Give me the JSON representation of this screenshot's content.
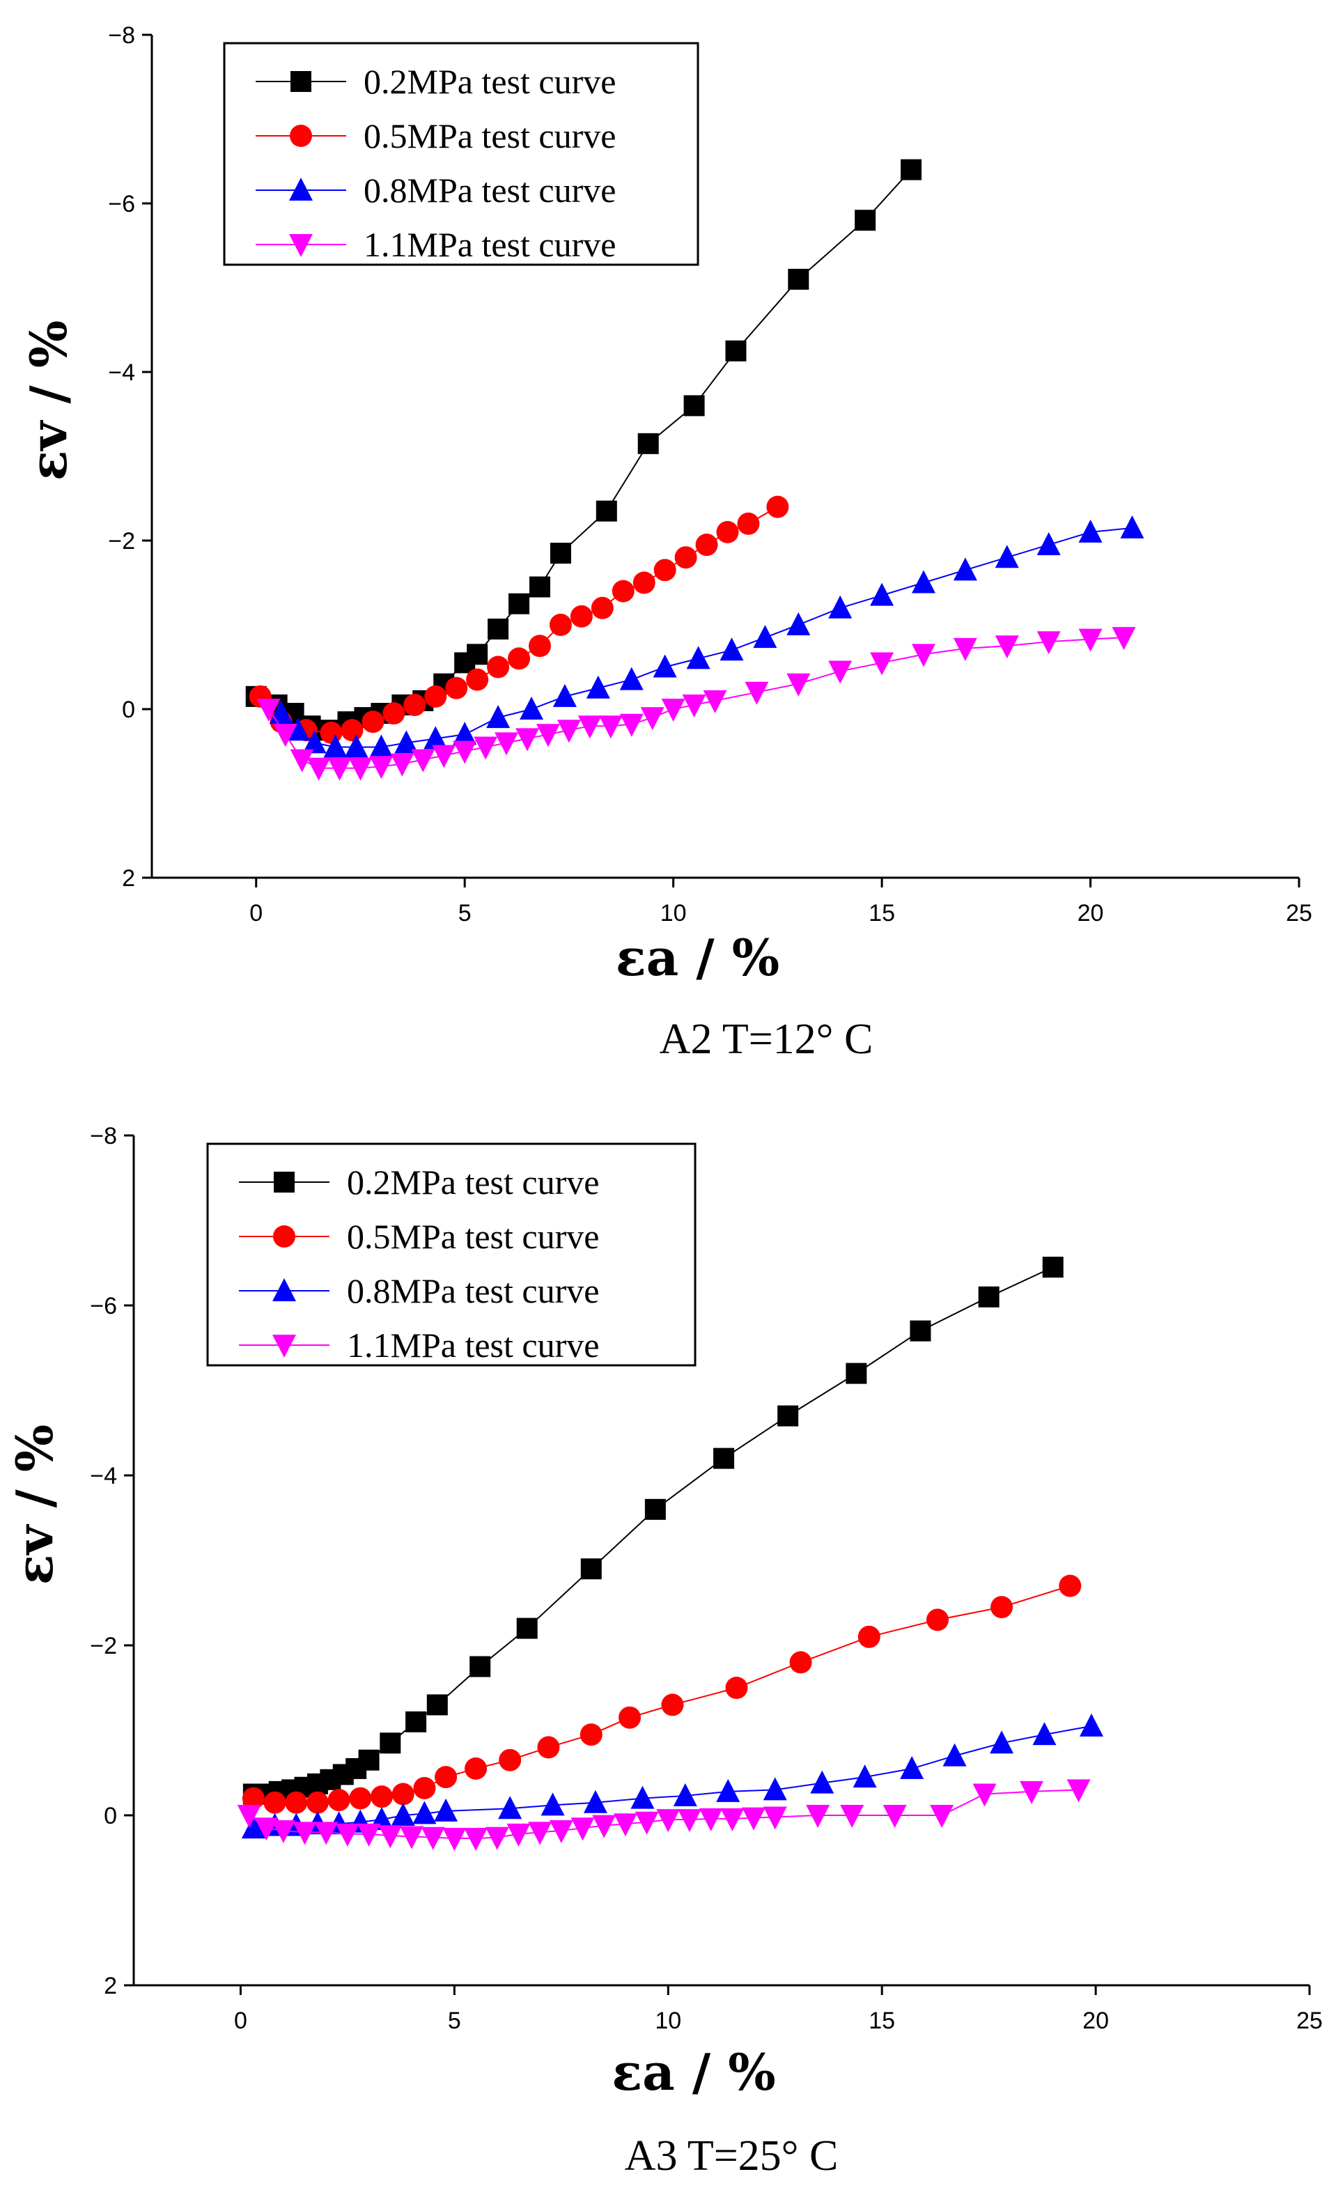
{
  "chart_data": [
    {
      "type": "line",
      "caption": "A2 T=12° C",
      "xlabel": "εa / %",
      "ylabel": "εv / %",
      "xlim": [
        -2.5,
        25
      ],
      "ylim": [
        2,
        -8
      ],
      "x_ticks": [
        0,
        5,
        10,
        15,
        20,
        25
      ],
      "y_ticks": [
        2,
        0,
        -2,
        -4,
        -6,
        -8
      ],
      "legend_position": "top-left",
      "series": [
        {
          "name": "0.2MPa test curve",
          "color": "#000000",
          "marker": "square",
          "x": [
            0.0,
            0.5,
            0.9,
            1.3,
            1.7,
            2.2,
            2.6,
            3.0,
            3.5,
            4.0,
            4.5,
            5.0,
            5.3,
            5.8,
            6.3,
            6.8,
            7.3,
            8.4,
            9.4,
            10.5,
            11.5,
            13.0,
            14.6,
            15.7
          ],
          "y": [
            -0.15,
            -0.05,
            0.05,
            0.2,
            0.25,
            0.15,
            0.1,
            0.05,
            -0.05,
            -0.1,
            -0.3,
            -0.55,
            -0.65,
            -0.95,
            -1.25,
            -1.45,
            -1.85,
            -2.35,
            -3.15,
            -3.6,
            -4.25,
            -5.1,
            -5.8,
            -6.4
          ]
        },
        {
          "name": "0.5MPa test curve",
          "color": "#ff0000",
          "marker": "circle",
          "x": [
            0.1,
            0.6,
            1.2,
            1.8,
            2.3,
            2.8,
            3.3,
            3.8,
            4.3,
            4.8,
            5.3,
            5.8,
            6.3,
            6.8,
            7.3,
            7.8,
            8.3,
            8.8,
            9.3,
            9.8,
            10.3,
            10.8,
            11.3,
            11.8,
            12.5
          ],
          "y": [
            -0.15,
            0.15,
            0.25,
            0.28,
            0.25,
            0.15,
            0.05,
            -0.05,
            -0.15,
            -0.25,
            -0.35,
            -0.5,
            -0.6,
            -0.75,
            -1.0,
            -1.1,
            -1.2,
            -1.4,
            -1.5,
            -1.65,
            -1.8,
            -1.95,
            -2.1,
            -2.2,
            -2.4
          ]
        },
        {
          "name": "0.8MPa test curve",
          "color": "#0000ff",
          "marker": "triangle-up",
          "x": [
            0.6,
            1.0,
            1.4,
            1.9,
            2.4,
            3.0,
            3.6,
            4.3,
            5.0,
            5.8,
            6.6,
            7.4,
            8.2,
            9.0,
            9.8,
            10.6,
            11.4,
            12.2,
            13.0,
            14.0,
            15.0,
            16.0,
            17.0,
            18.0,
            19.0,
            20.0,
            21.0
          ],
          "y": [
            0.05,
            0.25,
            0.4,
            0.45,
            0.45,
            0.45,
            0.4,
            0.35,
            0.3,
            0.1,
            0.0,
            -0.15,
            -0.25,
            -0.35,
            -0.5,
            -0.6,
            -0.7,
            -0.85,
            -1.0,
            -1.2,
            -1.35,
            -1.5,
            -1.65,
            -1.8,
            -1.95,
            -2.1,
            -2.15
          ]
        },
        {
          "name": "1.1MPa test curve",
          "color": "#ff00ff",
          "marker": "triangle-down",
          "x": [
            0.3,
            0.7,
            1.1,
            1.5,
            2.0,
            2.5,
            3.0,
            3.5,
            4.0,
            4.5,
            5.0,
            5.5,
            6.0,
            6.5,
            7.0,
            7.5,
            8.0,
            8.5,
            9.0,
            9.5,
            10.0,
            10.5,
            11.0,
            12.0,
            13.0,
            14.0,
            15.0,
            16.0,
            17.0,
            18.0,
            19.0,
            20.0,
            20.8
          ],
          "y": [
            0.0,
            0.3,
            0.6,
            0.7,
            0.7,
            0.7,
            0.68,
            0.65,
            0.6,
            0.55,
            0.5,
            0.45,
            0.4,
            0.35,
            0.3,
            0.25,
            0.2,
            0.2,
            0.18,
            0.1,
            0.0,
            -0.05,
            -0.1,
            -0.2,
            -0.3,
            -0.45,
            -0.55,
            -0.65,
            -0.72,
            -0.75,
            -0.8,
            -0.83,
            -0.85
          ]
        }
      ]
    },
    {
      "type": "line",
      "caption": "A3  T=25° C",
      "xlabel": "εa / %",
      "ylabel": "εv / %",
      "xlim": [
        -2.5,
        25
      ],
      "ylim": [
        2,
        -8
      ],
      "x_ticks": [
        0,
        5,
        10,
        15,
        20,
        25
      ],
      "y_ticks": [
        2,
        0,
        -2,
        -4,
        -6,
        -8
      ],
      "legend_position": "top-left",
      "series": [
        {
          "name": "0.2MPa test curve",
          "color": "#000000",
          "marker": "square",
          "x": [
            0.3,
            0.6,
            0.9,
            1.2,
            1.5,
            1.8,
            2.1,
            2.4,
            2.7,
            3.0,
            3.5,
            4.1,
            4.6,
            5.6,
            6.7,
            8.2,
            9.7,
            11.3,
            12.8,
            14.4,
            15.9,
            17.5,
            19.0
          ],
          "y": [
            -0.25,
            -0.25,
            -0.28,
            -0.3,
            -0.33,
            -0.37,
            -0.42,
            -0.48,
            -0.55,
            -0.65,
            -0.85,
            -1.1,
            -1.3,
            -1.75,
            -2.2,
            -2.9,
            -3.6,
            -4.2,
            -4.7,
            -5.2,
            -5.7,
            -6.1,
            -6.45
          ]
        },
        {
          "name": "0.5MPa test curve",
          "color": "#ff0000",
          "marker": "circle",
          "x": [
            0.3,
            0.8,
            1.3,
            1.8,
            2.3,
            2.8,
            3.3,
            3.8,
            4.3,
            4.8,
            5.5,
            6.3,
            7.2,
            8.2,
            9.1,
            10.1,
            11.6,
            13.1,
            14.7,
            16.3,
            17.8,
            19.4
          ],
          "y": [
            -0.2,
            -0.15,
            -0.15,
            -0.15,
            -0.18,
            -0.2,
            -0.22,
            -0.25,
            -0.32,
            -0.45,
            -0.55,
            -0.65,
            -0.8,
            -0.95,
            -1.15,
            -1.3,
            -1.5,
            -1.8,
            -2.1,
            -2.3,
            -2.45,
            -2.7
          ]
        },
        {
          "name": "0.8MPa test curve",
          "color": "#0000ff",
          "marker": "triangle-up",
          "x": [
            0.3,
            0.8,
            1.3,
            1.8,
            2.3,
            2.8,
            3.3,
            3.8,
            4.3,
            4.8,
            6.3,
            7.3,
            8.3,
            9.4,
            10.4,
            11.4,
            12.5,
            13.6,
            14.6,
            15.7,
            16.7,
            17.8,
            18.8,
            19.9
          ],
          "y": [
            0.15,
            0.12,
            0.12,
            0.1,
            0.1,
            0.08,
            0.05,
            0.0,
            -0.02,
            -0.05,
            -0.08,
            -0.12,
            -0.15,
            -0.2,
            -0.23,
            -0.28,
            -0.3,
            -0.38,
            -0.45,
            -0.55,
            -0.7,
            -0.85,
            -0.95,
            -1.05
          ]
        },
        {
          "name": "1.1MPa test curve",
          "color": "#ff00ff",
          "marker": "triangle-down",
          "x": [
            0.2,
            0.6,
            1.0,
            1.5,
            2.0,
            2.5,
            3.0,
            3.5,
            4.0,
            4.5,
            5.0,
            5.5,
            6.0,
            6.5,
            7.0,
            7.5,
            8.0,
            8.5,
            9.0,
            9.5,
            10.0,
            10.5,
            11.0,
            11.5,
            12.0,
            12.5,
            13.5,
            14.3,
            15.3,
            16.4,
            17.4,
            18.5,
            19.6
          ],
          "y": [
            0.0,
            0.15,
            0.18,
            0.2,
            0.2,
            0.22,
            0.22,
            0.24,
            0.25,
            0.26,
            0.27,
            0.27,
            0.26,
            0.22,
            0.2,
            0.18,
            0.15,
            0.12,
            0.1,
            0.08,
            0.05,
            0.05,
            0.04,
            0.04,
            0.03,
            0.02,
            0.0,
            0.0,
            0.0,
            0.0,
            -0.25,
            -0.28,
            -0.3
          ]
        }
      ]
    }
  ]
}
